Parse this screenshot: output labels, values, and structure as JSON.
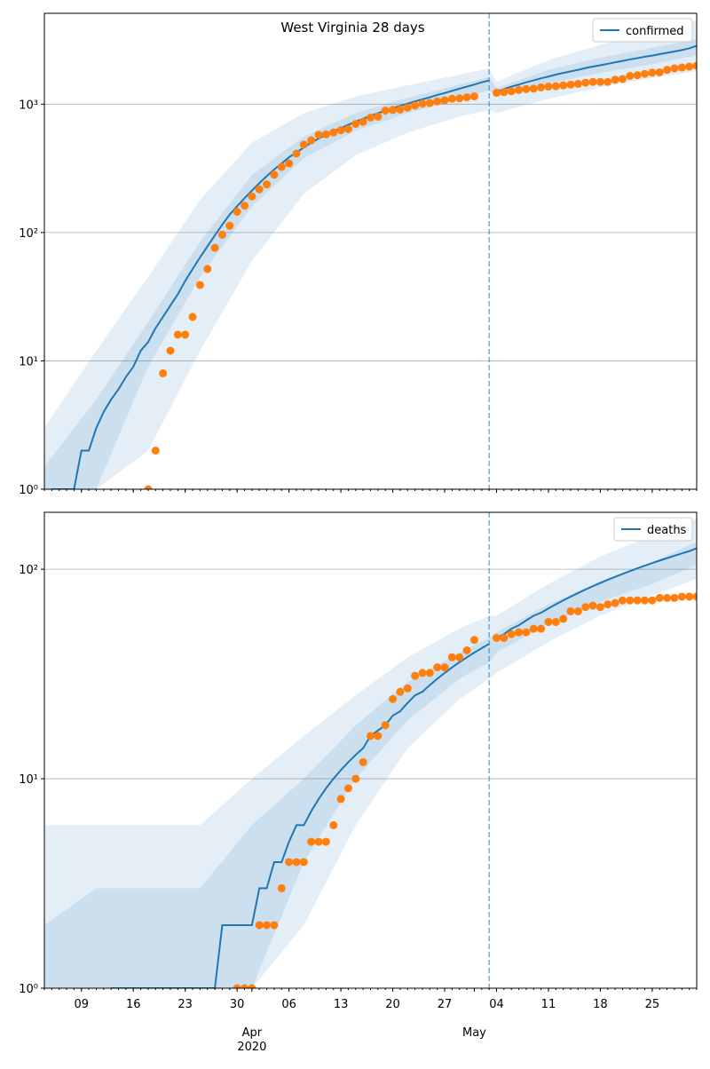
{
  "chart_data": [
    {
      "type": "line",
      "title": "West Virginia 28 days",
      "x": [
        "2020-03-04",
        "2020-03-05",
        "2020-03-06",
        "2020-03-07",
        "2020-03-08",
        "2020-03-09",
        "2020-03-10",
        "2020-03-11",
        "2020-03-12",
        "2020-03-13",
        "2020-03-14",
        "2020-03-15",
        "2020-03-16",
        "2020-03-17",
        "2020-03-18",
        "2020-03-19",
        "2020-03-20",
        "2020-03-21",
        "2020-03-22",
        "2020-03-23",
        "2020-03-24",
        "2020-03-25",
        "2020-03-26",
        "2020-03-27",
        "2020-03-28",
        "2020-03-29",
        "2020-03-30",
        "2020-03-31",
        "2020-04-01",
        "2020-04-02",
        "2020-04-03",
        "2020-04-04",
        "2020-04-05",
        "2020-04-06",
        "2020-04-07",
        "2020-04-08",
        "2020-04-09",
        "2020-04-10",
        "2020-04-11",
        "2020-04-12",
        "2020-04-13",
        "2020-04-14",
        "2020-04-15",
        "2020-04-16",
        "2020-04-17",
        "2020-04-18",
        "2020-04-19",
        "2020-04-20",
        "2020-04-21",
        "2020-04-22",
        "2020-04-23",
        "2020-04-24",
        "2020-04-25",
        "2020-04-26",
        "2020-04-27",
        "2020-04-28",
        "2020-04-29",
        "2020-04-30",
        "2020-05-01",
        "2020-05-02",
        "2020-05-03",
        "2020-05-04",
        "2020-05-05",
        "2020-05-06",
        "2020-05-07",
        "2020-05-08",
        "2020-05-09",
        "2020-05-10",
        "2020-05-11",
        "2020-05-12",
        "2020-05-13",
        "2020-05-14",
        "2020-05-15",
        "2020-05-16",
        "2020-05-17",
        "2020-05-18",
        "2020-05-19",
        "2020-05-20",
        "2020-05-21",
        "2020-05-22",
        "2020-05-23",
        "2020-05-24",
        "2020-05-25",
        "2020-05-26",
        "2020-05-27",
        "2020-05-28",
        "2020-05-29",
        "2020-05-30",
        "2020-05-31"
      ],
      "series": [
        {
          "name": "confirmed",
          "color": "#1f77b4",
          "values": [
            null,
            1,
            1,
            1,
            1,
            2,
            2,
            3,
            4,
            5,
            6,
            7.5,
            9,
            12,
            14,
            18,
            22,
            27,
            33,
            42,
            52,
            64,
            78,
            95,
            115,
            138,
            160,
            185,
            212,
            242,
            275,
            310,
            345,
            385,
            420,
            460,
            500,
            540,
            575,
            615,
            650,
            690,
            730,
            770,
            810,
            850,
            890,
            930,
            970,
            1010,
            1050,
            1090,
            1130,
            1180,
            1220,
            1270,
            1320,
            1370,
            1420,
            1480,
            1530,
            1250,
            1310,
            1370,
            1420,
            1480,
            1530,
            1590,
            1640,
            1700,
            1750,
            1800,
            1850,
            1910,
            1960,
            2010,
            2060,
            2120,
            2170,
            2230,
            2280,
            2340,
            2390,
            2450,
            2510,
            2570,
            2640,
            2720,
            2850
          ]
        }
      ],
      "points": {
        "color": "#ff7f0e",
        "values": [
          null,
          null,
          null,
          null,
          null,
          null,
          null,
          null,
          null,
          null,
          null,
          null,
          null,
          null,
          1,
          2,
          8,
          12,
          16,
          16,
          22,
          39,
          52,
          76,
          96,
          113,
          145,
          162,
          191,
          217,
          237,
          282,
          324,
          345,
          412,
          484,
          523,
          577,
          582,
          602,
          626,
          640,
          702,
          728,
          785,
          800,
          890,
          902,
          908,
          939,
          975,
          1010,
          1020,
          1050,
          1070,
          1100,
          1110,
          1130,
          1150,
          null,
          null,
          1225,
          1240,
          1260,
          1290,
          1310,
          1320,
          1350,
          1370,
          1380,
          1400,
          1420,
          1440,
          1470,
          1490,
          1490,
          1490,
          1550,
          1570,
          1660,
          1680,
          1720,
          1760,
          1770,
          1850,
          1900,
          1930,
          1960,
          1990
        ]
      },
      "bands": {
        "color": "#1f77b4",
        "x": [
          "2020-03-04",
          "2020-03-11",
          "2020-03-18",
          "2020-03-25",
          "2020-04-01",
          "2020-04-08",
          "2020-04-15",
          "2020-04-22",
          "2020-04-29",
          "2020-05-03",
          "2020-05-04",
          "2020-05-11",
          "2020-05-18",
          "2020-05-25",
          "2020-05-31"
        ],
        "ranges": [
          {
            "lower": [
              1,
              1,
              2,
              12,
              60,
              200,
              400,
              600,
              800,
              900,
              850,
              1100,
              1350,
              1600,
              1800
            ],
            "upper": [
              3,
              12,
              45,
              180,
              500,
              850,
              1150,
              1400,
              1700,
              1900,
              1500,
              2200,
              2900,
              3700,
              4500
            ]
          },
          {
            "lower": [
              1,
              1,
              9,
              45,
              160,
              380,
              620,
              850,
              1100,
              1280,
              1150,
              1450,
              1750,
              2050,
              2400
            ],
            "upper": [
              1.5,
              5,
              20,
              85,
              280,
              560,
              850,
              1120,
              1420,
              1620,
              1330,
              1850,
              2300,
              2750,
              3200
            ]
          }
        ]
      },
      "vline": "2020-05-03",
      "xlim": [
        "2020-03-04",
        "2020-05-31"
      ],
      "xticks": [
        "2020-03-09",
        "2020-03-16",
        "2020-03-23",
        "2020-03-30",
        "2020-04-06",
        "2020-04-13",
        "2020-04-20",
        "2020-04-27",
        "2020-05-04",
        "2020-05-11",
        "2020-05-18",
        "2020-05-25"
      ],
      "ylim": [
        1,
        5100
      ],
      "log_y": true,
      "grid": true,
      "legend": "upper right",
      "yticks": [
        {
          "value": 1,
          "label": "10⁰"
        },
        {
          "value": 10,
          "label": "10¹"
        },
        {
          "value": 100,
          "label": "10²"
        },
        {
          "value": 1000,
          "label": "10³"
        }
      ]
    },
    {
      "type": "line",
      "x": [
        "2020-03-04",
        "2020-03-05",
        "2020-03-06",
        "2020-03-07",
        "2020-03-08",
        "2020-03-09",
        "2020-03-10",
        "2020-03-11",
        "2020-03-12",
        "2020-03-13",
        "2020-03-14",
        "2020-03-15",
        "2020-03-16",
        "2020-03-17",
        "2020-03-18",
        "2020-03-19",
        "2020-03-20",
        "2020-03-21",
        "2020-03-22",
        "2020-03-23",
        "2020-03-24",
        "2020-03-25",
        "2020-03-26",
        "2020-03-27",
        "2020-03-28",
        "2020-03-29",
        "2020-03-30",
        "2020-03-31",
        "2020-04-01",
        "2020-04-02",
        "2020-04-03",
        "2020-04-04",
        "2020-04-05",
        "2020-04-06",
        "2020-04-07",
        "2020-04-08",
        "2020-04-09",
        "2020-04-10",
        "2020-04-11",
        "2020-04-12",
        "2020-04-13",
        "2020-04-14",
        "2020-04-15",
        "2020-04-16",
        "2020-04-17",
        "2020-04-18",
        "2020-04-19",
        "2020-04-20",
        "2020-04-21",
        "2020-04-22",
        "2020-04-23",
        "2020-04-24",
        "2020-04-25",
        "2020-04-26",
        "2020-04-27",
        "2020-04-28",
        "2020-04-29",
        "2020-04-30",
        "2020-05-01",
        "2020-05-02",
        "2020-05-03",
        "2020-05-04",
        "2020-05-05",
        "2020-05-06",
        "2020-05-07",
        "2020-05-08",
        "2020-05-09",
        "2020-05-10",
        "2020-05-11",
        "2020-05-12",
        "2020-05-13",
        "2020-05-14",
        "2020-05-15",
        "2020-05-16",
        "2020-05-17",
        "2020-05-18",
        "2020-05-19",
        "2020-05-20",
        "2020-05-21",
        "2020-05-22",
        "2020-05-23",
        "2020-05-24",
        "2020-05-25",
        "2020-05-26",
        "2020-05-27",
        "2020-05-28",
        "2020-05-29",
        "2020-05-30",
        "2020-05-31"
      ],
      "series": [
        {
          "name": "deaths",
          "color": "#1f77b4",
          "values": [
            null,
            null,
            null,
            null,
            null,
            null,
            null,
            null,
            null,
            1,
            1,
            1,
            1,
            1,
            1,
            1,
            1,
            1,
            1,
            1,
            1,
            1,
            1,
            1,
            2,
            2,
            2,
            2,
            2,
            3,
            3,
            4,
            4,
            5,
            6,
            6,
            7,
            8,
            9,
            10,
            11,
            12,
            13,
            14,
            16,
            17,
            18,
            20,
            21,
            23,
            25,
            26,
            28,
            30,
            32,
            34,
            36,
            38,
            40,
            42,
            44,
            47,
            49,
            52,
            54,
            57,
            60,
            62,
            65,
            68,
            71,
            74,
            77,
            80,
            83,
            86,
            89,
            92,
            95,
            98,
            101,
            104,
            107,
            110,
            113,
            116,
            119,
            122,
            126
          ]
        }
      ],
      "points": {
        "color": "#ff7f0e",
        "values": [
          null,
          null,
          null,
          null,
          null,
          null,
          null,
          null,
          null,
          null,
          null,
          null,
          null,
          null,
          null,
          null,
          null,
          null,
          null,
          null,
          null,
          null,
          null,
          null,
          null,
          null,
          1,
          1,
          1,
          2,
          2,
          2,
          3,
          4,
          4,
          4,
          5,
          5,
          5,
          6,
          8,
          9,
          10,
          12,
          16,
          16,
          18,
          24,
          26,
          27,
          31,
          32,
          32,
          34,
          34,
          38,
          38,
          41,
          46,
          null,
          null,
          47,
          47,
          49,
          50,
          50,
          52,
          52,
          56,
          56,
          58,
          63,
          63,
          66,
          67,
          66,
          68,
          69,
          71,
          71,
          71,
          71,
          71,
          73,
          73,
          73,
          74,
          74,
          74
        ]
      },
      "bands": {
        "color": "#1f77b4",
        "x": [
          "2020-03-04",
          "2020-03-11",
          "2020-03-18",
          "2020-03-25",
          "2020-04-01",
          "2020-04-08",
          "2020-04-15",
          "2020-04-22",
          "2020-04-29",
          "2020-05-03",
          "2020-05-04",
          "2020-05-11",
          "2020-05-18",
          "2020-05-25",
          "2020-05-31"
        ],
        "ranges": [
          {
            "lower": [
              1,
              1,
              1,
              1,
              1,
              2,
              6,
              14,
              24,
              30,
              32,
              45,
              60,
              75,
              90
            ],
            "upper": [
              6,
              6,
              6,
              6,
              10,
              16,
              25,
              38,
              52,
              60,
              60,
              85,
              115,
              145,
              175
            ]
          },
          {
            "lower": [
              1,
              1,
              1,
              1,
              1,
              4,
              10,
              19,
              30,
              36,
              40,
              55,
              70,
              85,
              105
            ],
            "upper": [
              2,
              3,
              3,
              3,
              6,
              10,
              18,
              29,
              40,
              47,
              50,
              68,
              88,
              108,
              135
            ]
          }
        ]
      },
      "vline": "2020-05-03",
      "xlim": [
        "2020-03-04",
        "2020-05-31"
      ],
      "xticks": [
        {
          "value": "2020-03-09",
          "label": "09"
        },
        {
          "value": "2020-03-16",
          "label": "16"
        },
        {
          "value": "2020-03-23",
          "label": "23"
        },
        {
          "value": "2020-03-30",
          "label": "30"
        },
        {
          "value": "2020-04-06",
          "label": "06"
        },
        {
          "value": "2020-04-13",
          "label": "13"
        },
        {
          "value": "2020-04-20",
          "label": "20"
        },
        {
          "value": "2020-04-27",
          "label": "27"
        },
        {
          "value": "2020-05-04",
          "label": "04"
        },
        {
          "value": "2020-05-11",
          "label": "11"
        },
        {
          "value": "2020-05-18",
          "label": "18"
        },
        {
          "value": "2020-05-25",
          "label": "25"
        }
      ],
      "xmonth_ticks": [
        {
          "value": "2020-04-01",
          "label": "Apr"
        },
        {
          "value": "2020-05-01",
          "label": "May"
        }
      ],
      "xyear_label": "2020",
      "ylim": [
        1,
        187
      ],
      "log_y": true,
      "grid": true,
      "legend": "upper right",
      "yticks": [
        {
          "value": 1,
          "label": "10⁰"
        },
        {
          "value": 10,
          "label": "10¹"
        },
        {
          "value": 100,
          "label": "10²"
        }
      ]
    }
  ]
}
